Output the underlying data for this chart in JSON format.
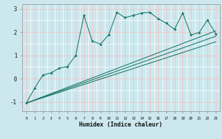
{
  "title": "",
  "xlabel": "Humidex (Indice chaleur)",
  "ylabel": "",
  "bg_color": "#cce8ee",
  "line_color": "#1a7a6a",
  "grid_color_major": "#f5c0c0",
  "grid_color_minor": "#ffffff",
  "xlim": [
    -0.5,
    23.5
  ],
  "ylim": [
    -1.4,
    3.2
  ],
  "xtick_labels": [
    "0",
    "1",
    "2",
    "3",
    "4",
    "5",
    "6",
    "7",
    "8",
    "9",
    "10",
    "11",
    "12",
    "13",
    "14",
    "15",
    "16",
    "17",
    "18",
    "19",
    "20",
    "21",
    "22",
    "23"
  ],
  "ytick_values": [
    -1,
    0,
    1,
    2,
    3
  ],
  "data_x": [
    0,
    1,
    2,
    3,
    4,
    5,
    6,
    7,
    8,
    9,
    10,
    11,
    12,
    13,
    14,
    15,
    16,
    17,
    18,
    19,
    20,
    21,
    22,
    23
  ],
  "data_jagged": [
    -1.05,
    -0.42,
    0.15,
    0.25,
    0.45,
    0.52,
    1.0,
    2.72,
    1.62,
    1.48,
    1.88,
    2.85,
    2.62,
    2.72,
    2.82,
    2.85,
    2.58,
    2.38,
    2.12,
    2.82,
    1.88,
    1.98,
    2.52,
    1.93
  ],
  "trend1_x": [
    0,
    23
  ],
  "trend1_y": [
    -1.05,
    2.05
  ],
  "trend2_x": [
    0,
    23
  ],
  "trend2_y": [
    -1.05,
    1.82
  ],
  "trend3_x": [
    0,
    23
  ],
  "trend3_y": [
    -1.05,
    1.58
  ]
}
